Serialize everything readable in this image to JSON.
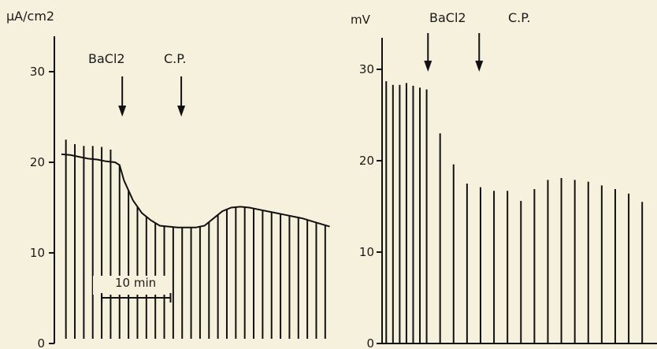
{
  "chart_data": [
    {
      "type": "line",
      "ylabel": "µA/cm2",
      "ylim": [
        0,
        33
      ],
      "yticks": [
        0,
        10,
        20,
        30
      ],
      "annotations": [
        {
          "label": "BaCl2",
          "x": 6.8,
          "kind": "arrow"
        },
        {
          "label": "C.P.",
          "x": 13.4,
          "kind": "arrow"
        }
      ],
      "scale_bar": {
        "label": "10 min",
        "x_start": 4.5,
        "x_end": 12.2
      },
      "pulse_positions": [
        0.5,
        1.5,
        2.5,
        3.5,
        4.5,
        5.5,
        6.5,
        7.5,
        8.5,
        9.5,
        10.5,
        11.5,
        12.5,
        13.5,
        14.5,
        15.5,
        16.5,
        17.5,
        18.5,
        19.5,
        20.5,
        21.5,
        22.5,
        23.5,
        24.5,
        25.5,
        26.5,
        27.5,
        28.5,
        29.5
      ],
      "pulse_tops": [
        22.5,
        22.0,
        21.8,
        21.8,
        21.7,
        21.4
      ],
      "series": [
        {
          "x": [
            0,
            1,
            2,
            3,
            4,
            5,
            6,
            6.5,
            7,
            8,
            9,
            10,
            11,
            12,
            13,
            14,
            15,
            16,
            17,
            18,
            19,
            20,
            21,
            22,
            23,
            24,
            25,
            26,
            27,
            28,
            29,
            30
          ],
          "values": [
            20.9,
            20.8,
            20.6,
            20.4,
            20.3,
            20.1,
            20.0,
            19.7,
            18.0,
            15.8,
            14.4,
            13.6,
            13.0,
            12.9,
            12.8,
            12.8,
            12.8,
            13.0,
            13.8,
            14.6,
            15.0,
            15.1,
            15.0,
            14.8,
            14.6,
            14.4,
            14.2,
            14.0,
            13.8,
            13.5,
            13.2,
            12.9
          ]
        }
      ]
    },
    {
      "type": "bar",
      "ylabel": "mV",
      "ylim": [
        0,
        33
      ],
      "yticks": [
        0,
        10,
        20,
        30
      ],
      "annotations": [
        {
          "label": "BaCl2",
          "x": 6.7,
          "kind": "arrow"
        },
        {
          "label": "C.P.",
          "x": 14.3,
          "kind": "arrow"
        }
      ],
      "bar_positions": [
        0.5,
        1.5,
        2.5,
        3.5,
        4.5,
        5.5,
        6.5,
        8.5,
        10.5,
        12.5,
        14.5,
        16.5,
        18.5,
        20.5,
        22.5,
        24.5,
        26.5,
        28.5,
        30.5,
        32.5,
        34.5,
        36.5,
        38.5
      ],
      "values": [
        28.7,
        28.3,
        28.3,
        28.5,
        28.2,
        28.0,
        27.8,
        23.0,
        19.6,
        17.5,
        17.1,
        16.7,
        16.7,
        15.6,
        16.9,
        17.9,
        18.1,
        17.9,
        17.7,
        17.3,
        16.9,
        16.4,
        15.5
      ]
    }
  ]
}
